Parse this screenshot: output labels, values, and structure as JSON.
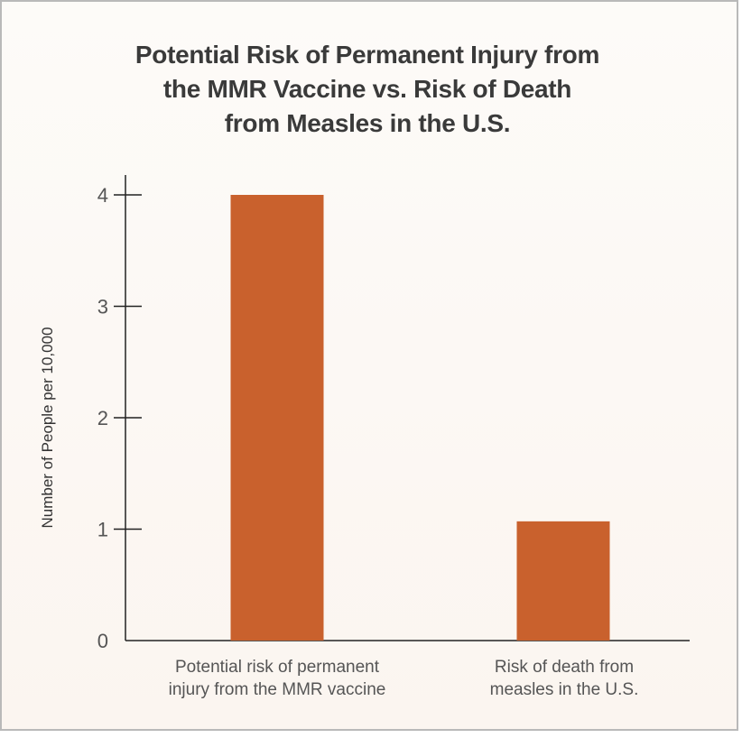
{
  "chart_data": {
    "type": "bar",
    "title_lines": [
      "Potential Risk of Permanent Injury from",
      "the MMR Vaccine vs. Risk of Death",
      "from Measles in the U.S."
    ],
    "ylabel": "Number of People per 10,000",
    "xlabel": "",
    "ylim": [
      0,
      4
    ],
    "yticks": [
      0,
      1,
      2,
      3,
      4
    ],
    "categories": [
      [
        "Potential risk of permanent",
        "injury from the MMR vaccine"
      ],
      [
        "Risk of death from",
        "measles in the U.S."
      ]
    ],
    "values": [
      4,
      1.07
    ],
    "bar_color": "#c9612d",
    "grid": false
  }
}
